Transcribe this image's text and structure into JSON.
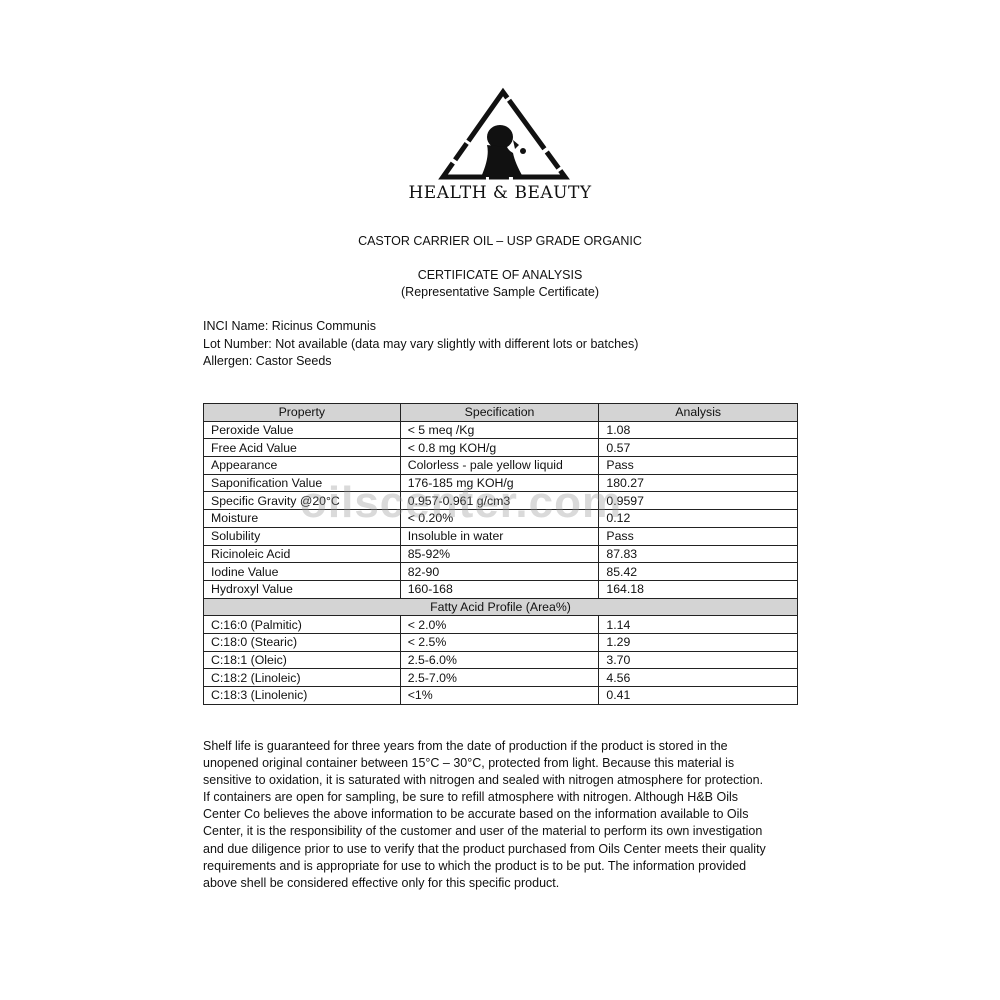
{
  "logo": {
    "text": "HEALTH & BEAUTY",
    "icon": "woman-silhouette-triangle-logo"
  },
  "product_title": "CASTOR CARRIER OIL – USP GRADE ORGANIC",
  "certificate_title": "CERTIFICATE OF ANALYSIS",
  "certificate_subtitle": "(Representative Sample Certificate)",
  "info": [
    "INCI Name: Ricinus Communis",
    "Lot Number: Not available (data may vary slightly with different lots or batches)",
    "Allergen: Castor Seeds"
  ],
  "watermark": "oilscenter.com",
  "table": {
    "headers": [
      "Property",
      "Specification",
      "Analysis"
    ],
    "rows": [
      [
        "Peroxide Value",
        "< 5 meq /Kg",
        "1.08"
      ],
      [
        "Free Acid Value",
        "< 0.8 mg KOH/g",
        "0.57"
      ],
      [
        "Appearance",
        "Colorless - pale yellow liquid",
        "Pass"
      ],
      [
        "Saponification Value",
        "176-185 mg KOH/g",
        "180.27"
      ],
      [
        "Specific Gravity @20°C",
        "0.957-0.961 g/cm3",
        "0.9597"
      ],
      [
        "Moisture",
        "< 0.20%",
        "0.12"
      ],
      [
        "Solubility",
        "Insoluble in water",
        "Pass"
      ],
      [
        "Ricinoleic Acid",
        "85-92%",
        "87.83"
      ],
      [
        "Iodine Value",
        "82-90",
        "85.42"
      ],
      [
        "Hydroxyl Value",
        "160-168",
        "164.18"
      ]
    ],
    "section_header": "Fatty Acid Profile (Area%)",
    "fatty_rows": [
      [
        "C:16:0 (Palmitic)",
        "< 2.0%",
        "1.14"
      ],
      [
        "C:18:0 (Stearic)",
        "< 2.5%",
        "1.29"
      ],
      [
        "C:18:1 (Oleic)",
        "2.5-6.0%",
        "3.70"
      ],
      [
        "C:18:2 (Linoleic)",
        "2.5-7.0%",
        "4.56"
      ],
      [
        "C:18:3 (Linolenic)",
        "<1%",
        "0.41"
      ]
    ]
  },
  "disclaimer_lines": [
    "Shelf life is guaranteed for three years from the date of production if the product is stored in the",
    "unopened original container between 15°C – 30°C, protected from light. Because this material is",
    "sensitive to oxidation, it is saturated with nitrogen and sealed with nitrogen atmosphere for protection.",
    "If containers are open for sampling, be sure to refill atmosphere with nitrogen. Although H&B Oils",
    "Center Co believes the above information to be accurate based on the information available to Oils",
    "Center, it is the responsibility of the customer and user of the material to perform its own investigation",
    "and due diligence prior to use to verify that the product purchased from Oils Center meets their quality",
    "requirements and is appropriate for use to which the product is to be put. The information provided",
    "above shell be considered effective only for this specific product."
  ]
}
